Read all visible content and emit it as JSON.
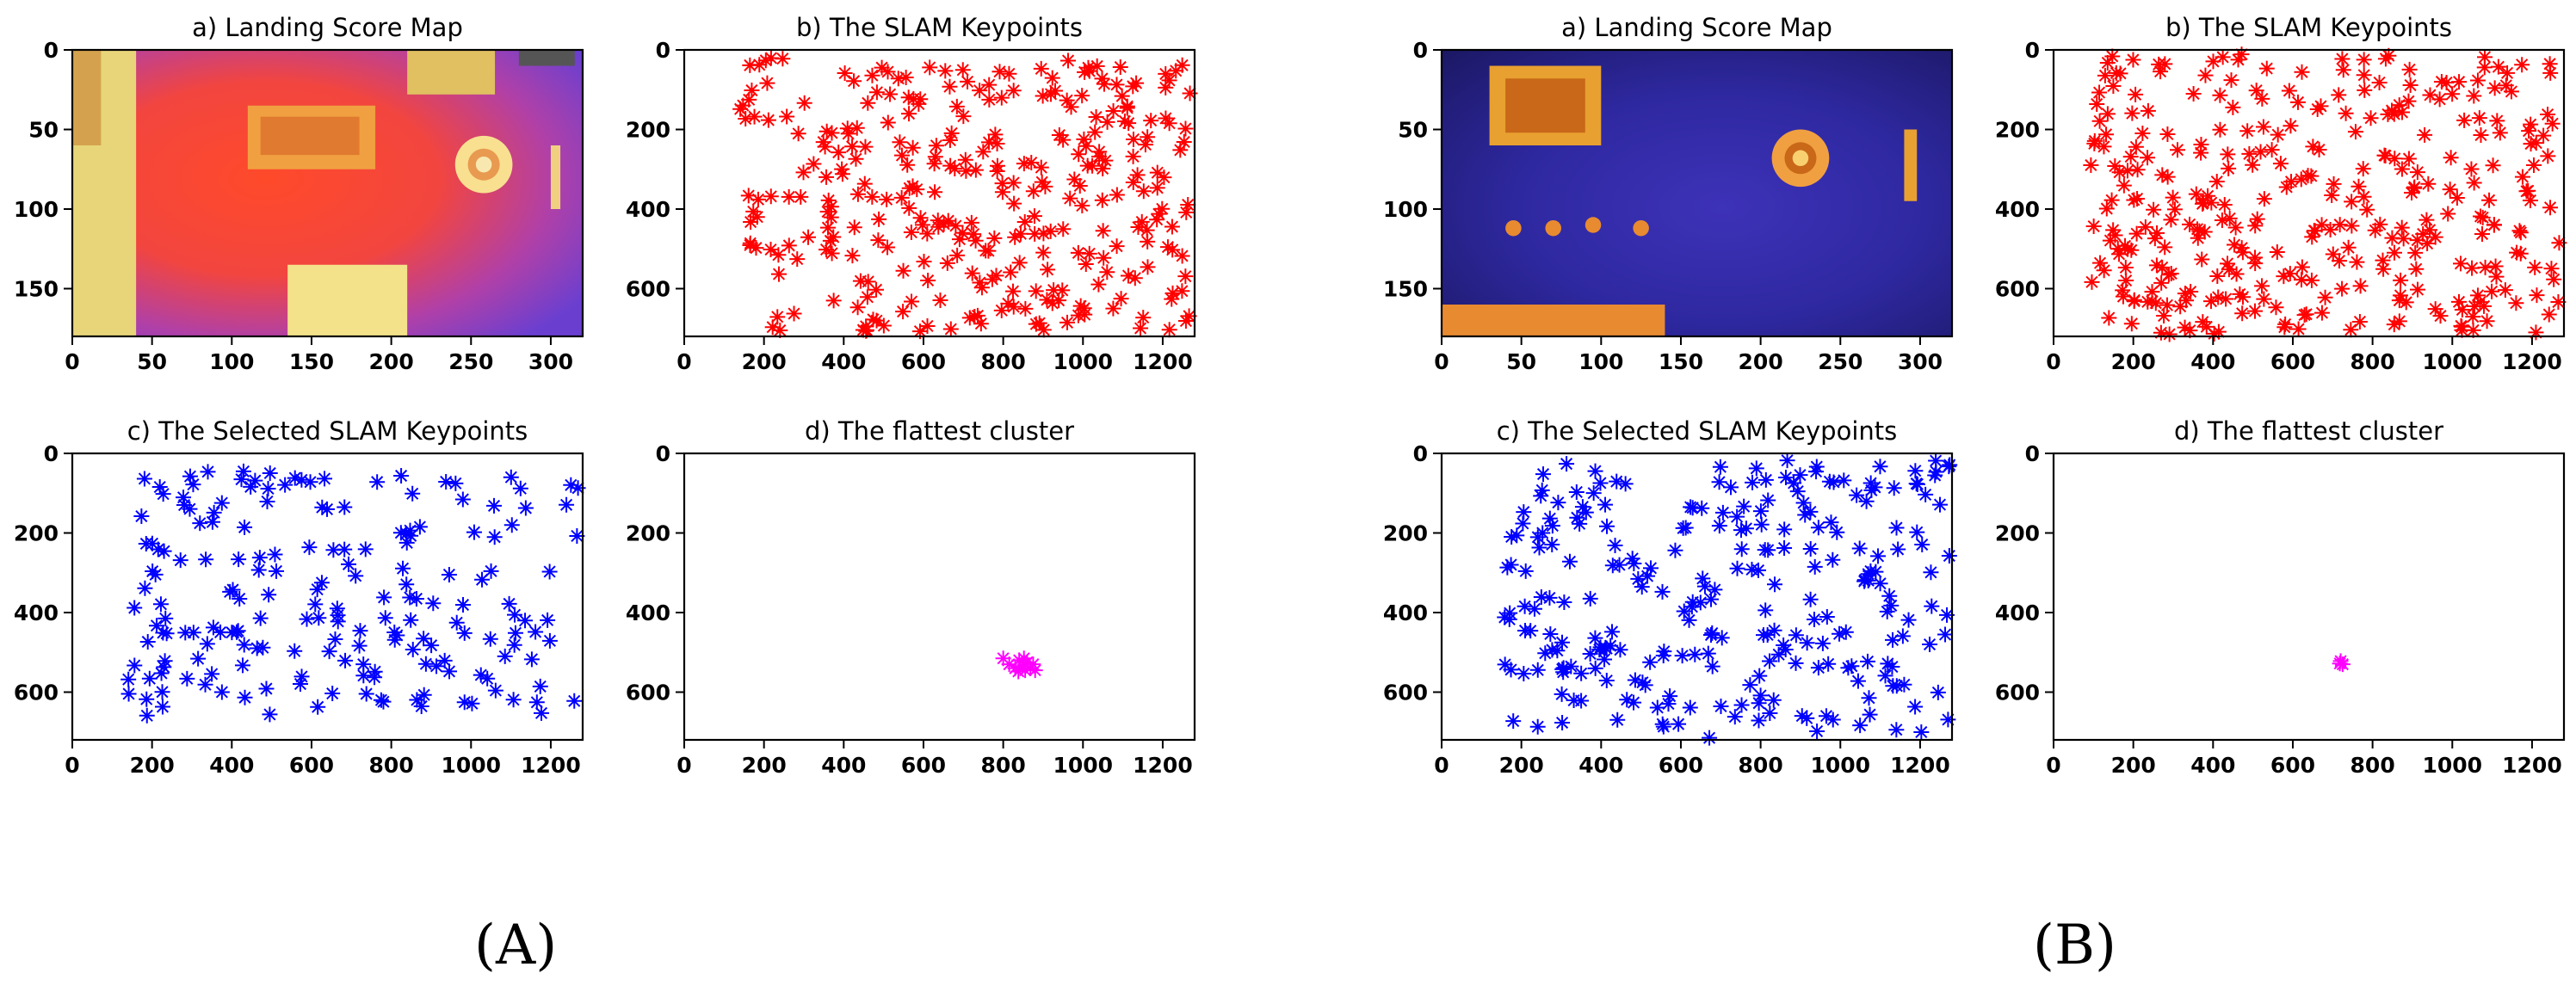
{
  "figure": {
    "groups": [
      {
        "label": "(A)",
        "panels": [
          {
            "title": "a) Landing Score Map",
            "type": "heatmap",
            "variant": "warm",
            "xlim": [
              0,
              320
            ],
            "ylim": [
              0,
              180
            ],
            "xticks": [
              0,
              50,
              100,
              150,
              200,
              250,
              300
            ],
            "yticks": [
              0,
              50,
              100,
              150
            ]
          },
          {
            "title": "b) The SLAM Keypoints",
            "type": "scatter",
            "marker": "*",
            "color": "#ff0000",
            "xlim": [
              0,
              1280
            ],
            "ylim": [
              0,
              720
            ],
            "xticks": [
              0,
              200,
              400,
              600,
              800,
              1000,
              1200
            ],
            "yticks": [
              0,
              200,
              400,
              600
            ],
            "cloud": {
              "count": 320,
              "x_range": [
                140,
                1270
              ],
              "y_range": [
                20,
                710
              ],
              "seed": 11
            }
          },
          {
            "title": "c) The Selected SLAM Keypoints",
            "type": "scatter",
            "marker": "*",
            "color": "#0000ff",
            "xlim": [
              0,
              1280
            ],
            "ylim": [
              0,
              720
            ],
            "xticks": [
              0,
              200,
              400,
              600,
              800,
              1000,
              1200
            ],
            "yticks": [
              0,
              200,
              400,
              600
            ],
            "cloud": {
              "count": 190,
              "x_range": [
                140,
                1270
              ],
              "y_range": [
                40,
                660
              ],
              "seed": 23
            }
          },
          {
            "title": "d) The flattest cluster",
            "type": "scatter",
            "marker": "*",
            "color": "#ff00ff",
            "xlim": [
              0,
              1280
            ],
            "ylim": [
              0,
              720
            ],
            "xticks": [
              0,
              200,
              400,
              600,
              800,
              1000,
              1200
            ],
            "yticks": [
              0,
              200,
              400,
              600
            ],
            "points": [
              [
                800,
                515
              ],
              [
                815,
                530
              ],
              [
                830,
                540
              ],
              [
                840,
                520
              ],
              [
                848,
                535
              ],
              [
                855,
                545
              ],
              [
                860,
                525
              ],
              [
                868,
                540
              ],
              [
                875,
                530
              ],
              [
                880,
                545
              ],
              [
                852,
                515
              ],
              [
                838,
                548
              ]
            ]
          }
        ]
      },
      {
        "label": "(B)",
        "panels": [
          {
            "title": "a) Landing Score Map",
            "type": "heatmap",
            "variant": "cool",
            "xlim": [
              0,
              320
            ],
            "ylim": [
              0,
              180
            ],
            "xticks": [
              0,
              50,
              100,
              150,
              200,
              250,
              300
            ],
            "yticks": [
              0,
              50,
              100,
              150
            ]
          },
          {
            "title": "b) The SLAM Keypoints",
            "type": "scatter",
            "marker": "*",
            "color": "#ff0000",
            "xlim": [
              0,
              1280
            ],
            "ylim": [
              0,
              720
            ],
            "xticks": [
              0,
              200,
              400,
              600,
              800,
              1000,
              1200
            ],
            "yticks": [
              0,
              200,
              400,
              600
            ],
            "cloud": {
              "count": 340,
              "x_range": [
                80,
                1275
              ],
              "y_range": [
                10,
                715
              ],
              "seed": 37
            }
          },
          {
            "title": "c) The Selected SLAM Keypoints",
            "type": "scatter",
            "marker": "*",
            "color": "#0000ff",
            "xlim": [
              0,
              1280
            ],
            "ylim": [
              0,
              720
            ],
            "xticks": [
              0,
              200,
              400,
              600,
              800,
              1000,
              1200
            ],
            "yticks": [
              0,
              200,
              400,
              600
            ],
            "cloud": {
              "count": 260,
              "x_range": [
                150,
                1275
              ],
              "y_range": [
                10,
                715
              ],
              "seed": 53
            }
          },
          {
            "title": "d) The flattest cluster",
            "type": "scatter",
            "marker": "*",
            "color": "#ff00ff",
            "xlim": [
              0,
              1280
            ],
            "ylim": [
              0,
              720
            ],
            "xticks": [
              0,
              200,
              400,
              600,
              800,
              1000,
              1200
            ],
            "yticks": [
              0,
              200,
              400,
              600
            ],
            "points": [
              [
                720,
                522
              ],
              [
                725,
                530
              ],
              [
                718,
                528
              ]
            ]
          }
        ]
      }
    ]
  },
  "chart_data": [
    {
      "type": "heatmap",
      "title": "a) Landing Score Map",
      "xlim": [
        0,
        320
      ],
      "ylim": [
        0,
        180
      ]
    },
    {
      "type": "scatter",
      "title": "b) The SLAM Keypoints",
      "xlim": [
        0,
        1280
      ],
      "ylim": [
        0,
        720
      ]
    },
    {
      "type": "scatter",
      "title": "c) The Selected SLAM Keypoints",
      "xlim": [
        0,
        1280
      ],
      "ylim": [
        0,
        720
      ]
    },
    {
      "type": "scatter",
      "title": "d) The flattest cluster",
      "xlim": [
        0,
        1280
      ],
      "ylim": [
        0,
        720
      ],
      "x": [
        800,
        815,
        830,
        840,
        848,
        855,
        860,
        868,
        875,
        880,
        852,
        838
      ],
      "y": [
        515,
        530,
        540,
        520,
        535,
        545,
        525,
        540,
        530,
        545,
        515,
        548
      ]
    },
    {
      "type": "heatmap",
      "title": "a) Landing Score Map",
      "xlim": [
        0,
        320
      ],
      "ylim": [
        0,
        180
      ]
    },
    {
      "type": "scatter",
      "title": "b) The SLAM Keypoints",
      "xlim": [
        0,
        1280
      ],
      "ylim": [
        0,
        720
      ]
    },
    {
      "type": "scatter",
      "title": "c) The Selected SLAM Keypoints",
      "xlim": [
        0,
        1280
      ],
      "ylim": [
        0,
        720
      ]
    },
    {
      "type": "scatter",
      "title": "d) The flattest cluster",
      "xlim": [
        0,
        1280
      ],
      "ylim": [
        0,
        720
      ],
      "x": [
        720,
        725,
        718
      ],
      "y": [
        522,
        530,
        528
      ]
    }
  ]
}
